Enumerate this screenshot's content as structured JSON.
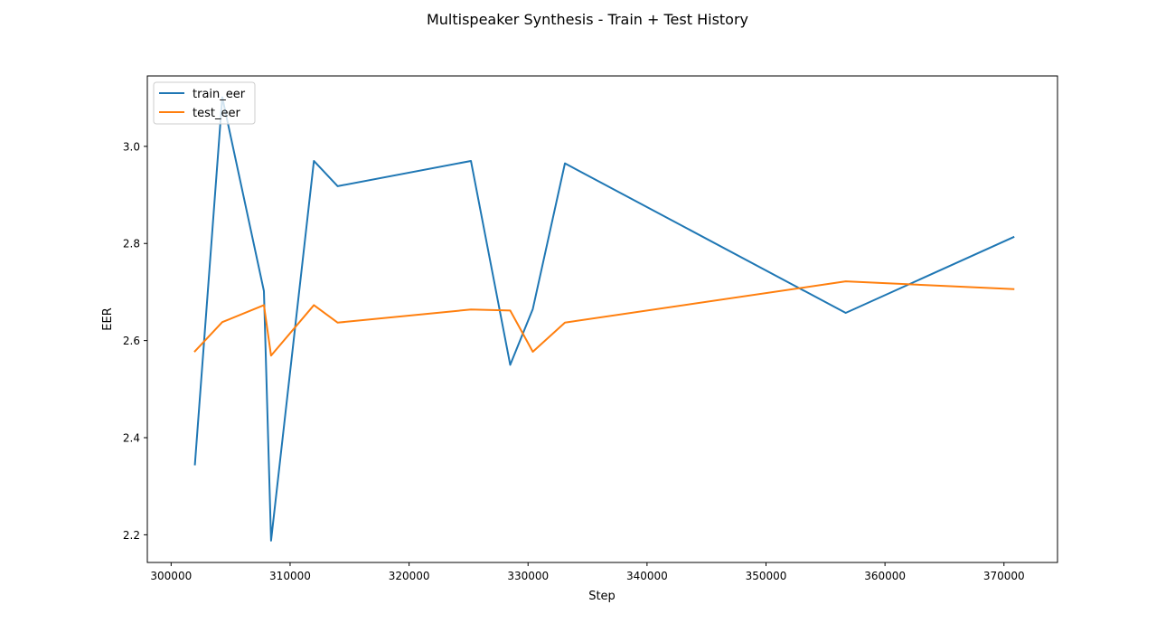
{
  "chart_data": {
    "type": "line",
    "title": "Multispeaker Synthesis - Train + Test History",
    "xlabel": "Step",
    "ylabel": "EER",
    "xlim": [
      298000,
      374500
    ],
    "ylim": [
      2.143,
      3.145
    ],
    "x_ticks": [
      300000,
      310000,
      320000,
      330000,
      340000,
      350000,
      360000,
      370000
    ],
    "x_tick_labels": [
      "300000",
      "310000",
      "320000",
      "330000",
      "340000",
      "350000",
      "360000",
      "370000"
    ],
    "y_ticks": [
      2.2,
      2.4,
      2.6,
      2.8,
      3.0
    ],
    "y_tick_labels": [
      "2.2",
      "2.4",
      "2.6",
      "2.8",
      "3.0"
    ],
    "grid": false,
    "legend_position": "upper-left",
    "series": [
      {
        "name": "train_eer",
        "color": "#1f77b4",
        "x": [
          302000,
          304300,
          307800,
          308400,
          312000,
          314000,
          325200,
          328500,
          330400,
          333100,
          356700,
          370800
        ],
        "y": [
          2.345,
          3.101,
          2.702,
          2.188,
          2.97,
          2.918,
          2.97,
          2.55,
          2.665,
          2.965,
          2.657,
          2.813
        ]
      },
      {
        "name": "test_eer",
        "color": "#ff7f0e",
        "x": [
          302000,
          304300,
          307800,
          308400,
          312000,
          314000,
          325200,
          328500,
          330400,
          333100,
          356700,
          370800
        ],
        "y": [
          2.578,
          2.638,
          2.673,
          2.569,
          2.673,
          2.637,
          2.664,
          2.662,
          2.577,
          2.637,
          2.722,
          2.706
        ]
      }
    ]
  }
}
